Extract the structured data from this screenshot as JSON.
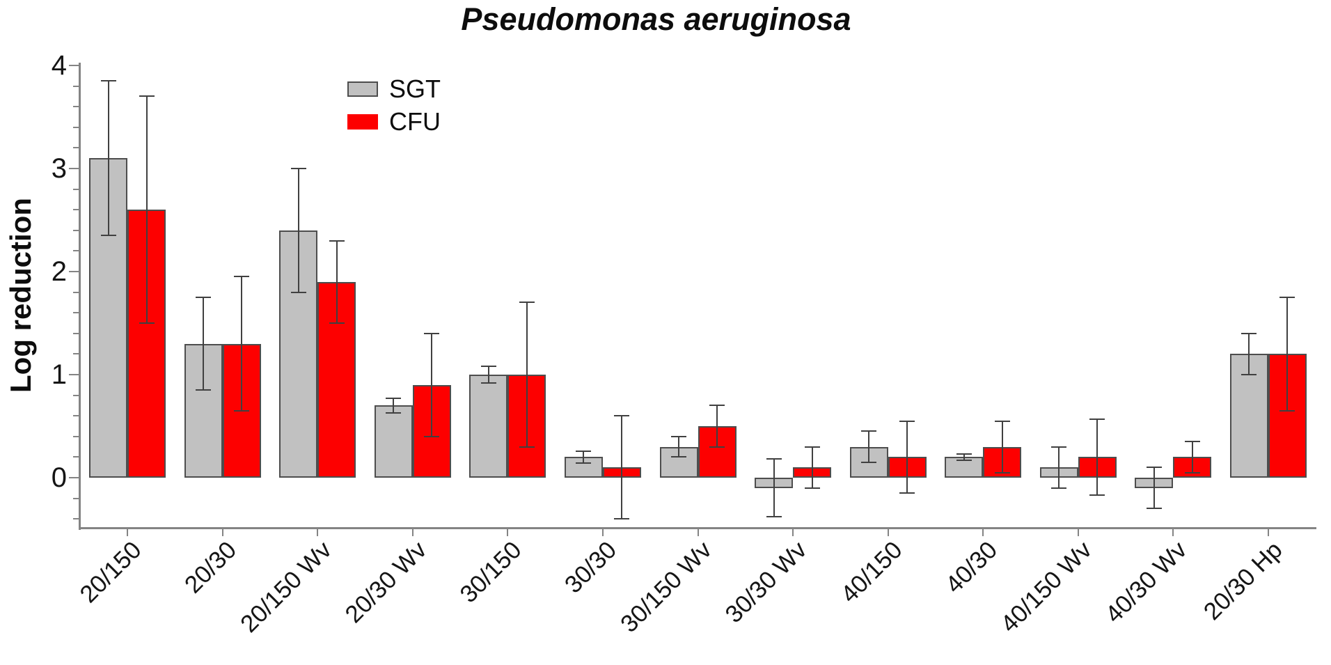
{
  "title": "Pseudomonas aeruginosa",
  "legend": {
    "items": [
      {
        "label": "SGT",
        "color": "#c1c1c1",
        "border": "#4d4d4d"
      },
      {
        "label": "CFU",
        "color": "#fd0000",
        "border": "#fd0000"
      }
    ]
  },
  "chart_data": {
    "type": "bar",
    "title": "Pseudomonas aeruginosa",
    "xlabel": "",
    "ylabel": "Log reduction",
    "categories": [
      "20/150",
      "20/30",
      "20/150 Wv",
      "20/30 Wv",
      "30/150",
      "30/30",
      "30/150 Wv",
      "30/30 Wv",
      "40/150",
      "40/30",
      "40/150 Wv",
      "40/30 Wv",
      "20/30 Hp"
    ],
    "series": [
      {
        "name": "SGT",
        "color": "#c1c1c1",
        "values": [
          3.1,
          1.3,
          2.4,
          0.7,
          1.0,
          0.2,
          0.3,
          -0.1,
          0.3,
          0.2,
          0.1,
          -0.1,
          1.2
        ],
        "errors": [
          0.75,
          0.45,
          0.6,
          0.07,
          0.08,
          0.06,
          0.1,
          0.28,
          0.15,
          0.03,
          0.2,
          0.2,
          0.2
        ]
      },
      {
        "name": "CFU",
        "color": "#fd0000",
        "values": [
          2.6,
          1.3,
          1.9,
          0.9,
          1.0,
          0.1,
          0.5,
          0.1,
          0.2,
          0.3,
          0.2,
          0.2,
          1.2
        ],
        "errors": [
          1.1,
          0.65,
          0.4,
          0.5,
          0.7,
          0.5,
          0.2,
          0.2,
          0.35,
          0.25,
          0.37,
          0.15,
          0.55
        ]
      }
    ],
    "ylim": [
      -0.49,
      4.03
    ],
    "yticks": [
      0,
      1,
      2,
      3,
      4
    ],
    "minor_tick_step": 0.2,
    "grid": false,
    "error_bars": true,
    "legend_position": "top-left-inside"
  },
  "colors": {
    "bar_border": "#4d4d4d",
    "error_bar": "#404040",
    "axis": "#848484",
    "text": "#151515"
  }
}
